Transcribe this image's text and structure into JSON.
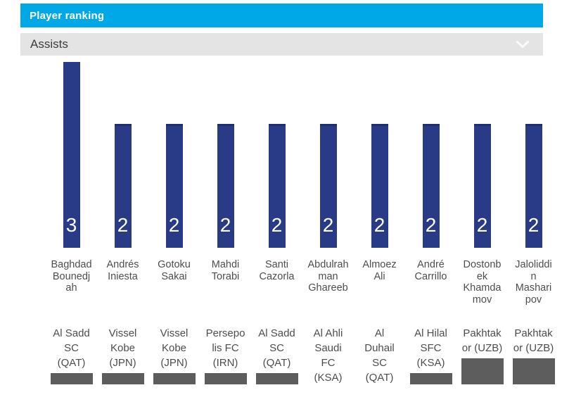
{
  "header": {
    "title": "Player ranking"
  },
  "filter": {
    "selected_metric": "Assists",
    "icon": "chevron-down-icon"
  },
  "colors": {
    "accent": "#00a8e8",
    "bar": "#293a86",
    "bar_top_edge": "#1f2e70",
    "filter_background": "#e4e4e4",
    "label_text": "#4d4d4d",
    "value_text": "#ffffff",
    "image_placeholder": "#5d5d5d"
  },
  "chart_data": {
    "type": "bar",
    "title": "Player ranking",
    "metric": "Assists",
    "ylim": [
      0,
      3
    ],
    "value_labels_position": "inside-bottom",
    "grid": false,
    "legend": false,
    "categories": [
      "Baghdad Bounedjah",
      "Andrés Iniesta",
      "Gotoku Sakai",
      "Mahdi Torabi",
      "Santi Cazorla",
      "Abdulrahman Ghareeb",
      "Almoez Ali",
      "André Carrillo",
      "Dostonbek Khamdamov",
      "Jaloliddin Masharipov"
    ],
    "values": [
      3,
      2,
      2,
      2,
      2,
      2,
      2,
      2,
      2,
      2
    ],
    "players": [
      {
        "name": "Baghdad Bounedjah",
        "club": "Al Sadd SC (QAT)",
        "assists": 3
      },
      {
        "name": "Andrés Iniesta",
        "club": "Vissel Kobe (JPN)",
        "assists": 2
      },
      {
        "name": "Gotoku Sakai",
        "club": "Vissel Kobe (JPN)",
        "assists": 2
      },
      {
        "name": "Mahdi Torabi",
        "club": "Persepolis FC (IRN)",
        "assists": 2
      },
      {
        "name": "Santi Cazorla",
        "club": "Al Sadd SC (QAT)",
        "assists": 2
      },
      {
        "name": "Abdulrahman Ghareeb",
        "club": "Al Ahli Saudi FC (KSA)",
        "assists": 2
      },
      {
        "name": "Almoez Ali",
        "club": "Al Duhail SC (QAT)",
        "assists": 2
      },
      {
        "name": "André Carrillo",
        "club": "Al Hilal SFC (KSA)",
        "assists": 2
      },
      {
        "name": "Dostonbek Khamdamov",
        "club": "Pakhtakor (UZB)",
        "assists": 2
      },
      {
        "name": "Jaloliddin Masharipov",
        "club": "Pakhtakor (UZB)",
        "assists": 2
      }
    ]
  }
}
